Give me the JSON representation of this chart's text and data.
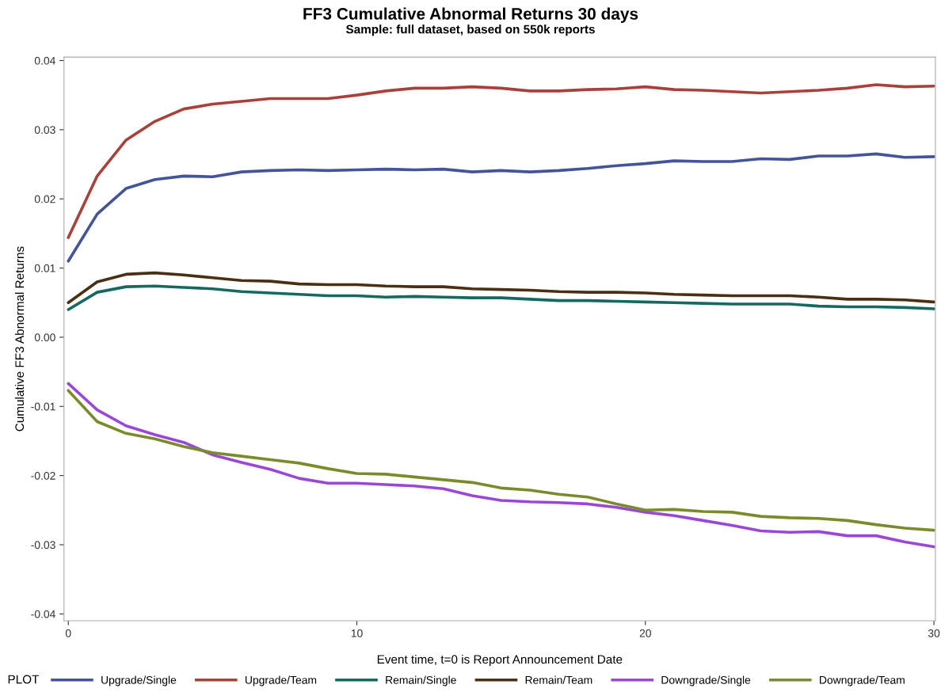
{
  "chart_data": {
    "type": "line",
    "title": "FF3 Cumulative Abnormal Returns 30 days",
    "subtitle": "Sample: full dataset, based on 550k reports",
    "xlabel": "Event time, t=0 is Report Announcement Date",
    "ylabel": "Cumulative FF3 Abnormal Returns",
    "x": [
      0,
      1,
      2,
      3,
      4,
      5,
      6,
      7,
      8,
      9,
      10,
      11,
      12,
      13,
      14,
      15,
      16,
      17,
      18,
      19,
      20,
      21,
      22,
      23,
      24,
      25,
      26,
      27,
      28,
      29,
      30
    ],
    "xlim": [
      -0.15,
      30.05
    ],
    "xticks": [
      0,
      10,
      20,
      30
    ],
    "ylim": [
      -0.041,
      0.0405
    ],
    "yticks": [
      -0.04,
      -0.03,
      -0.02,
      -0.01,
      {
        "value": 0,
        "label": "0.00"
      },
      0.01,
      0.02,
      0.03,
      0.04
    ],
    "grid": false,
    "legend": "bottom",
    "legend_title": "PLOT",
    "marker": "none",
    "line_style": "solid",
    "series": [
      {
        "name": "Upgrade/Single",
        "color": "#44549a",
        "values": [
          0.011,
          0.0178,
          0.0215,
          0.0228,
          0.0233,
          0.0232,
          0.0239,
          0.0241,
          0.0242,
          0.0241,
          0.0242,
          0.0243,
          0.0242,
          0.0243,
          0.0239,
          0.0241,
          0.0239,
          0.0241,
          0.0244,
          0.0248,
          0.0251,
          0.0255,
          0.0254,
          0.0254,
          0.0258,
          0.0257,
          0.0262,
          0.0262,
          0.0265,
          0.026,
          0.0261
        ]
      },
      {
        "name": "Upgrade/Team",
        "color": "#a8413a",
        "values": [
          0.0144,
          0.0233,
          0.0285,
          0.0312,
          0.033,
          0.0337,
          0.0341,
          0.0345,
          0.0345,
          0.0345,
          0.035,
          0.0356,
          0.036,
          0.036,
          0.0362,
          0.036,
          0.0356,
          0.0356,
          0.0358,
          0.0359,
          0.0362,
          0.0358,
          0.0357,
          0.0355,
          0.0353,
          0.0355,
          0.0357,
          0.036,
          0.0365,
          0.0362,
          0.0363
        ]
      },
      {
        "name": "Remain/Single",
        "color": "#16695f",
        "values": [
          0.004,
          0.0065,
          0.0073,
          0.0074,
          0.0072,
          0.007,
          0.0066,
          0.0064,
          0.0062,
          0.006,
          0.006,
          0.0058,
          0.0059,
          0.0058,
          0.0057,
          0.0057,
          0.0055,
          0.0053,
          0.0053,
          0.0052,
          0.0051,
          0.005,
          0.0049,
          0.0048,
          0.0048,
          0.0048,
          0.0045,
          0.0044,
          0.0044,
          0.0043,
          0.0041
        ]
      },
      {
        "name": "Remain/Team",
        "color": "#4a2f12",
        "values": [
          0.005,
          0.008,
          0.0091,
          0.0093,
          0.009,
          0.0086,
          0.0082,
          0.0081,
          0.0077,
          0.0076,
          0.0076,
          0.0074,
          0.0073,
          0.0073,
          0.007,
          0.0069,
          0.0068,
          0.0066,
          0.0065,
          0.0065,
          0.0064,
          0.0062,
          0.0061,
          0.006,
          0.006,
          0.006,
          0.0058,
          0.0055,
          0.0055,
          0.0054,
          0.0051
        ]
      },
      {
        "name": "Downgrade/Single",
        "color": "#9a48d4",
        "values": [
          -0.0067,
          -0.0105,
          -0.0128,
          -0.0141,
          -0.0152,
          -0.017,
          -0.0181,
          -0.0191,
          -0.0204,
          -0.0211,
          -0.0211,
          -0.0213,
          -0.0215,
          -0.0219,
          -0.0229,
          -0.0236,
          -0.0238,
          -0.0239,
          -0.0241,
          -0.0246,
          -0.0253,
          -0.0258,
          -0.0265,
          -0.0272,
          -0.028,
          -0.0282,
          -0.0281,
          -0.0287,
          -0.0287,
          -0.0296,
          -0.0303
        ]
      },
      {
        "name": "Downgrade/Team",
        "color": "#7b8b2c",
        "values": [
          -0.0077,
          -0.0122,
          -0.0139,
          -0.0147,
          -0.0158,
          -0.0167,
          -0.0172,
          -0.0177,
          -0.0182,
          -0.019,
          -0.0197,
          -0.0198,
          -0.0202,
          -0.0206,
          -0.021,
          -0.0218,
          -0.0221,
          -0.0227,
          -0.0231,
          -0.0241,
          -0.025,
          -0.0249,
          -0.0252,
          -0.0253,
          -0.0259,
          -0.0261,
          -0.0262,
          -0.0265,
          -0.0271,
          -0.0276,
          -0.0279
        ]
      }
    ]
  }
}
